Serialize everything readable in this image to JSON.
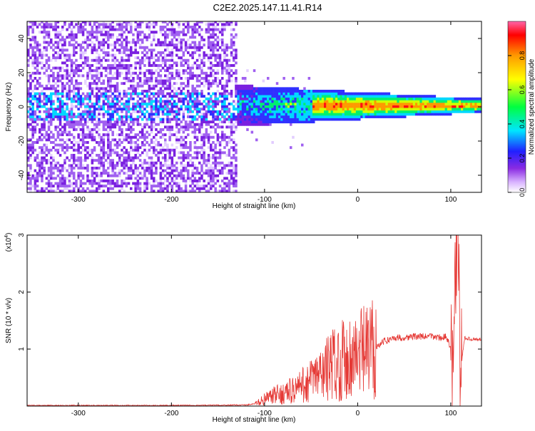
{
  "title": "C2E2.2025.147.11.41.R14",
  "colors": {
    "snr_line": "#e53935",
    "axis": "#000000",
    "spectrogram_low": "#8a2be2",
    "spectrogram_high": "#ff0000"
  },
  "chart_data": [
    {
      "type": "heatmap",
      "xlabel": "Height of straight line (km)",
      "ylabel": "Frequency (Hz)",
      "xlim": [
        -355,
        133
      ],
      "ylim": [
        -50,
        50
      ],
      "xticks": [
        -300,
        -200,
        -100,
        0,
        100
      ],
      "yticks": [
        -40,
        -20,
        0,
        20,
        40
      ],
      "xtick_labels": [
        "-300",
        "-200",
        "-100",
        "0",
        "100"
      ],
      "ytick_labels": [
        "-40",
        "-20",
        "0",
        "20",
        "40"
      ],
      "colorbar": {
        "label": "Normalized spectral amplitude",
        "range": [
          0,
          1
        ],
        "ticks": [
          0.0,
          0.2,
          0.4,
          0.6,
          0.8
        ],
        "tick_labels": [
          "0.0",
          "0.2",
          "0.4",
          "0.6",
          "0.8"
        ],
        "colormap": "rainbow (violet→blue→cyan→green→yellow→red)"
      },
      "features": {
        "noise_region_x": [
          -355,
          -130
        ],
        "carrier_frequency_hz": 0,
        "carrier_bandwidth_hz_near_noise": 12,
        "carrier_bandwidth_hz_far": 4
      },
      "grid": false
    },
    {
      "type": "line",
      "xlabel": "Height of straight line (km)",
      "ylabel": "SNR (10 * v/v)",
      "y_multiplier_label": "(x10",
      "y_multiplier_exp": "4",
      "y_multiplier_close": ")",
      "xlim": [
        -355,
        133
      ],
      "ylim": [
        0,
        3
      ],
      "xticks": [
        -300,
        -200,
        -100,
        0,
        100
      ],
      "yticks": [
        1,
        2,
        3
      ],
      "xtick_labels": [
        "-300",
        "-200",
        "-100",
        "0",
        "100"
      ],
      "ytick_labels": [
        "1",
        "2",
        "3"
      ],
      "series": [
        {
          "x": [
            -355,
            -300,
            -250,
            -200,
            -150,
            -120,
            -110,
            -100,
            -90,
            -80,
            -70,
            -60,
            -50,
            -40,
            -30,
            -20,
            -10,
            0,
            10,
            20,
            30,
            40,
            50,
            60,
            70,
            80,
            90,
            95,
            100,
            103,
            105,
            108,
            110,
            115,
            120,
            133
          ],
          "y": [
            0.01,
            0.01,
            0.01,
            0.01,
            0.015,
            0.02,
            0.04,
            0.12,
            0.18,
            0.22,
            0.28,
            0.35,
            0.45,
            0.55,
            0.7,
            0.8,
            0.85,
            0.9,
            0.95,
            1.05,
            1.15,
            1.2,
            1.2,
            1.22,
            1.22,
            1.22,
            1.2,
            1.22,
            1.0,
            0.1,
            2.5,
            3.0,
            0.6,
            1.2,
            1.18,
            1.17
          ]
        }
      ],
      "grid": false
    }
  ]
}
